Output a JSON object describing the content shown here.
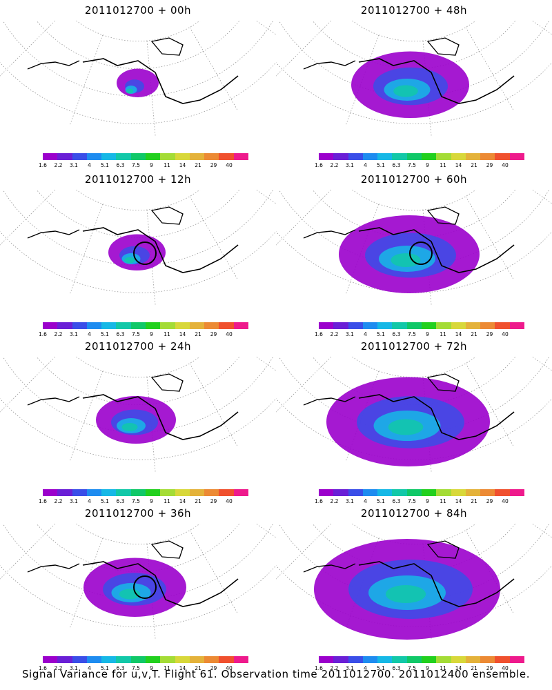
{
  "caption": "Signal Variance for u,v,T. Flight 61. Observation time 2011012700. 2011012400 ensemble.",
  "colorbar": {
    "labels": [
      "1.6",
      "2.2",
      "3.1",
      "4",
      "5.1",
      "6.3",
      "7.5",
      "9",
      "11",
      "14",
      "21",
      "29",
      "40"
    ],
    "colors": [
      "#9b00cc",
      "#6a1fd6",
      "#3a4ee8",
      "#1e8cf0",
      "#16b8e6",
      "#12c8a8",
      "#10c868",
      "#22d01e",
      "#a4dc36",
      "#d8d83a",
      "#e4b23a",
      "#ec8a34",
      "#f0502e",
      "#ee1a8c"
    ]
  },
  "panels": [
    {
      "title": "2011012700 + 00h",
      "level": 0.05,
      "circle": false
    },
    {
      "title": "2011012700 + 12h",
      "level": 0.15,
      "circle": true
    },
    {
      "title": "2011012700 + 24h",
      "level": 0.3,
      "circle": false
    },
    {
      "title": "2011012700 + 36h",
      "level": 0.45,
      "circle": true
    },
    {
      "title": "2011012700 + 48h",
      "level": 0.55,
      "circle": false
    },
    {
      "title": "2011012700 + 60h",
      "level": 0.7,
      "circle": true
    },
    {
      "title": "2011012700 + 72h",
      "level": 0.85,
      "circle": false
    },
    {
      "title": "2011012700 + 84h",
      "level": 1.0,
      "circle": false
    }
  ]
}
